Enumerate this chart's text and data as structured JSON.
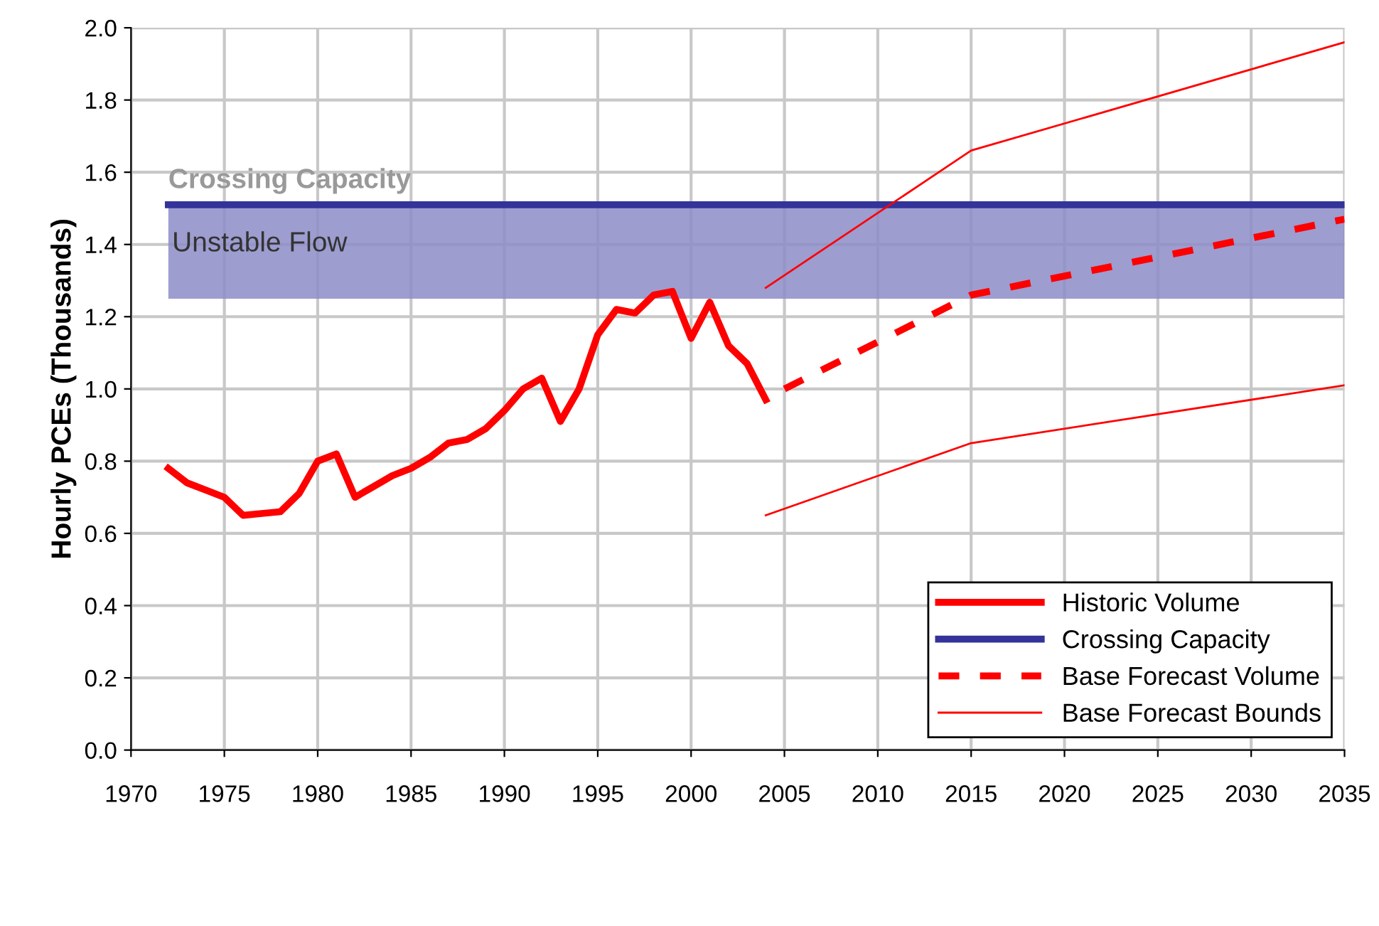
{
  "chart_data": {
    "type": "line",
    "ylabel": "Hourly PCEs (Thousands)",
    "xlim": [
      1970,
      2035
    ],
    "xticks": [
      1970,
      1975,
      1980,
      1985,
      1990,
      1995,
      2000,
      2005,
      2010,
      2015,
      2020,
      2025,
      2030,
      2035
    ],
    "ylim": [
      0,
      2.0
    ],
    "yticks": [
      {
        "value": 0,
        "label": "0.0"
      },
      0.2,
      0.4,
      0.6,
      0.8,
      {
        "value": 1.0,
        "label": "1.0"
      },
      1.2,
      1.4,
      1.6,
      1.8,
      {
        "value": 2.0,
        "label": "2.0"
      }
    ],
    "grid": true,
    "legend": "bottom right",
    "series": [
      {
        "name": "Historic Volume",
        "color": "#ff0000",
        "line_style": "solid",
        "x": [
          1972,
          1973,
          1974,
          1975,
          1976,
          1977,
          1978,
          1979,
          1980,
          1981,
          1982,
          1983,
          1984,
          1985,
          1986,
          1987,
          1988,
          1989,
          1990,
          1991,
          1992,
          1993,
          1994,
          1995,
          1996,
          1997,
          1998,
          1999,
          2000,
          2001,
          2002,
          2003,
          2004
        ],
        "values": [
          0.78,
          0.74,
          0.72,
          0.7,
          0.65,
          0.655,
          0.66,
          0.71,
          0.8,
          0.82,
          0.7,
          0.73,
          0.76,
          0.78,
          0.81,
          0.85,
          0.86,
          0.89,
          0.94,
          1.0,
          1.03,
          0.91,
          1.0,
          1.15,
          1.22,
          1.21,
          1.26,
          1.27,
          1.14,
          1.24,
          1.12,
          1.07,
          0.97
        ]
      },
      {
        "name": "Crossing Capacity",
        "color": "#333399",
        "line_style": "solid",
        "x": [
          1972,
          2035
        ],
        "values": [
          1.51,
          1.51
        ]
      },
      {
        "name": "Base Forecast Volume",
        "color": "#ff0000",
        "line_style": "dashed",
        "x": [
          2005,
          2015,
          2035
        ],
        "values": [
          1.0,
          1.26,
          1.47
        ]
      },
      {
        "name": "Base Forecast Bounds",
        "color": "#ff0000",
        "line_style": "solid",
        "x": [
          2004,
          2015,
          2035
        ],
        "values": [
          1.28,
          1.66,
          1.96
        ]
      },
      {
        "color": "#ff0000",
        "line_style": "solid",
        "x": [
          2004,
          2015,
          2035
        ],
        "values": [
          0.65,
          0.85,
          1.01
        ]
      }
    ],
    "bands": [
      {
        "axis": "y",
        "from": 1.25,
        "to": 1.51,
        "label": "Unstable Flow",
        "color": "#8c8cc8"
      }
    ],
    "annotations": [
      {
        "text": "Crossing Capacity",
        "x": 1972,
        "y": 1.51
      }
    ]
  }
}
